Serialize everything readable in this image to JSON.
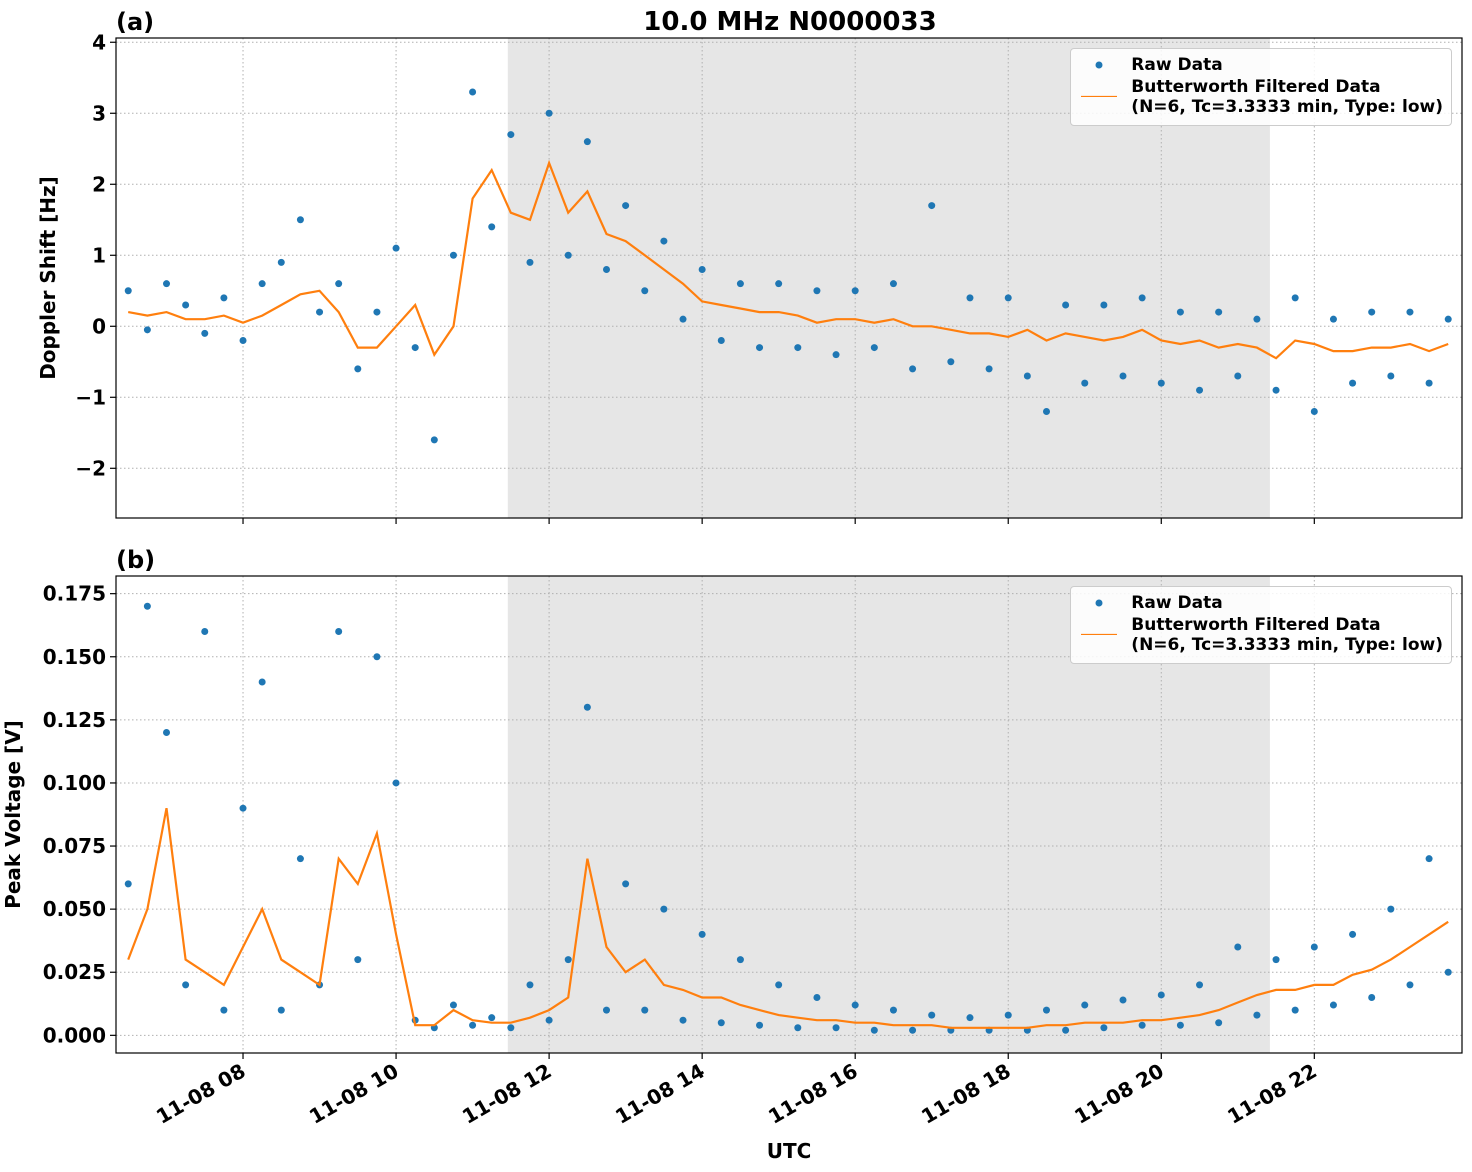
{
  "chart_data": [
    {
      "type": "line",
      "label": "(a)",
      "title": "10.0 MHz N0000033",
      "ylabel": "Doppler Shift [Hz]",
      "x": [
        6.5,
        6.75,
        7,
        7.25,
        7.5,
        7.75,
        8,
        8.25,
        8.5,
        8.75,
        9,
        9.25,
        9.5,
        9.75,
        10,
        10.25,
        10.5,
        10.75,
        11,
        11.25,
        11.5,
        11.75,
        12,
        12.25,
        12.5,
        12.75,
        13,
        13.25,
        13.5,
        13.75,
        14,
        14.25,
        14.5,
        14.75,
        15,
        15.25,
        15.5,
        15.75,
        16,
        16.25,
        16.5,
        16.75,
        17,
        17.25,
        17.5,
        17.75,
        18,
        18.25,
        18.5,
        18.75,
        19,
        19.25,
        19.5,
        19.75,
        20,
        20.25,
        20.5,
        20.75,
        21,
        21.25,
        21.5,
        21.75,
        22,
        22.25,
        22.5,
        22.75,
        23,
        23.25,
        23.5,
        23.75
      ],
      "series": [
        {
          "name": "Raw Data",
          "type": "scatter",
          "color": "#1f77b4",
          "values": [
            0.5,
            -0.05,
            0.6,
            0.3,
            -0.1,
            0.4,
            -0.2,
            0.6,
            0.9,
            1.5,
            0.2,
            0.6,
            -0.6,
            0.2,
            1.1,
            -0.3,
            -1.6,
            1.0,
            3.3,
            1.4,
            2.7,
            0.9,
            3.0,
            1.0,
            2.6,
            0.8,
            1.7,
            0.5,
            1.2,
            0.1,
            0.8,
            -0.2,
            0.6,
            -0.3,
            0.6,
            -0.3,
            0.5,
            -0.4,
            0.5,
            -0.3,
            0.6,
            -0.6,
            1.7,
            -0.5,
            0.4,
            -0.6,
            0.4,
            -0.7,
            -1.2,
            0.3,
            -0.8,
            0.3,
            -0.7,
            0.4,
            -0.8,
            0.2,
            -0.9,
            0.2,
            -0.7,
            0.1,
            -0.9,
            0.4,
            -1.2,
            0.1,
            -0.8,
            0.2,
            -0.7,
            0.2,
            -0.8,
            0.1
          ]
        },
        {
          "name": "Butterworth Filtered Data\n(N=6, Tc=3.3333 min, Type: low)",
          "type": "line",
          "color": "#ff7f0e",
          "values": [
            0.2,
            0.15,
            0.2,
            0.1,
            0.1,
            0.15,
            0.05,
            0.15,
            0.3,
            0.45,
            0.5,
            0.2,
            -0.3,
            -0.3,
            0.0,
            0.3,
            -0.4,
            0.0,
            1.8,
            2.2,
            1.6,
            1.5,
            2.3,
            1.6,
            1.9,
            1.3,
            1.2,
            1.0,
            0.8,
            0.6,
            0.35,
            0.3,
            0.25,
            0.2,
            0.2,
            0.15,
            0.05,
            0.1,
            0.1,
            0.05,
            0.1,
            0.0,
            0.0,
            -0.05,
            -0.1,
            -0.1,
            -0.15,
            -0.05,
            -0.2,
            -0.1,
            -0.15,
            -0.2,
            -0.15,
            -0.05,
            -0.2,
            -0.25,
            -0.2,
            -0.3,
            -0.25,
            -0.3,
            -0.45,
            -0.2,
            -0.25,
            -0.35,
            -0.35,
            -0.3,
            -0.3,
            -0.25,
            -0.35,
            -0.25
          ]
        }
      ],
      "span": [
        11.46,
        21.42
      ],
      "span_color": "#e6e6e6",
      "xlim": [
        6.34,
        23.93
      ],
      "xticks": [
        8,
        10,
        12,
        14,
        16,
        18,
        20,
        22
      ],
      "ylim": [
        -2.7,
        4.06
      ],
      "yticks": [
        {
          "value": -2,
          "label": "−2"
        },
        {
          "value": -1,
          "label": "−1"
        },
        0,
        1,
        2,
        3,
        4
      ],
      "grid": true,
      "legend": "upper right"
    },
    {
      "type": "line",
      "label": "(b)",
      "ylabel": "Peak Voltage [V]",
      "xlabel": "UTC",
      "x": [
        6.5,
        6.75,
        7,
        7.25,
        7.5,
        7.75,
        8,
        8.25,
        8.5,
        8.75,
        9,
        9.25,
        9.5,
        9.75,
        10,
        10.25,
        10.5,
        10.75,
        11,
        11.25,
        11.5,
        11.75,
        12,
        12.25,
        12.5,
        12.75,
        13,
        13.25,
        13.5,
        13.75,
        14,
        14.25,
        14.5,
        14.75,
        15,
        15.25,
        15.5,
        15.75,
        16,
        16.25,
        16.5,
        16.75,
        17,
        17.25,
        17.5,
        17.75,
        18,
        18.25,
        18.5,
        18.75,
        19,
        19.25,
        19.5,
        19.75,
        20,
        20.25,
        20.5,
        20.75,
        21,
        21.25,
        21.5,
        21.75,
        22,
        22.25,
        22.5,
        22.75,
        23,
        23.25,
        23.5,
        23.75
      ],
      "series": [
        {
          "name": "Raw Data",
          "type": "scatter",
          "color": "#1f77b4",
          "values": [
            0.06,
            0.17,
            0.12,
            0.02,
            0.16,
            0.01,
            0.09,
            0.14,
            0.01,
            0.07,
            0.02,
            0.16,
            0.03,
            0.15,
            0.1,
            0.006,
            0.003,
            0.012,
            0.004,
            0.007,
            0.003,
            0.02,
            0.006,
            0.03,
            0.13,
            0.01,
            0.06,
            0.01,
            0.05,
            0.006,
            0.04,
            0.005,
            0.03,
            0.004,
            0.02,
            0.003,
            0.015,
            0.003,
            0.012,
            0.002,
            0.01,
            0.002,
            0.008,
            0.002,
            0.007,
            0.002,
            0.008,
            0.002,
            0.01,
            0.002,
            0.012,
            0.003,
            0.014,
            0.004,
            0.016,
            0.004,
            0.02,
            0.005,
            0.035,
            0.008,
            0.03,
            0.01,
            0.035,
            0.012,
            0.04,
            0.015,
            0.05,
            0.02,
            0.07,
            0.025
          ]
        },
        {
          "name": "Butterworth Filtered Data\n(N=6, Tc=3.3333 min, Type: low)",
          "type": "line",
          "color": "#ff7f0e",
          "values": [
            0.03,
            0.05,
            0.09,
            0.03,
            0.025,
            0.02,
            0.035,
            0.05,
            0.03,
            0.025,
            0.02,
            0.07,
            0.06,
            0.08,
            0.04,
            0.004,
            0.004,
            0.01,
            0.006,
            0.005,
            0.005,
            0.007,
            0.01,
            0.015,
            0.07,
            0.035,
            0.025,
            0.03,
            0.02,
            0.018,
            0.015,
            0.015,
            0.012,
            0.01,
            0.008,
            0.007,
            0.006,
            0.006,
            0.005,
            0.005,
            0.004,
            0.004,
            0.004,
            0.003,
            0.003,
            0.003,
            0.003,
            0.003,
            0.004,
            0.004,
            0.005,
            0.005,
            0.005,
            0.006,
            0.006,
            0.007,
            0.008,
            0.01,
            0.013,
            0.016,
            0.018,
            0.018,
            0.02,
            0.02,
            0.024,
            0.026,
            0.03,
            0.035,
            0.04,
            0.045
          ]
        }
      ],
      "span": [
        11.46,
        21.42
      ],
      "span_color": "#e6e6e6",
      "xlim": [
        6.34,
        23.93
      ],
      "xticks": [
        {
          "value": 8,
          "label": "11-08 08"
        },
        {
          "value": 10,
          "label": "11-08 10"
        },
        {
          "value": 12,
          "label": "11-08 12"
        },
        {
          "value": 14,
          "label": "11-08 14"
        },
        {
          "value": 16,
          "label": "11-08 16"
        },
        {
          "value": 18,
          "label": "11-08 18"
        },
        {
          "value": 20,
          "label": "11-08 20"
        },
        {
          "value": 22,
          "label": "11-08 22"
        }
      ],
      "ylim": [
        -0.007,
        0.182
      ],
      "yticks": [
        {
          "value": 0,
          "label": "0.000"
        },
        0.025,
        {
          "value": 0.05,
          "label": "0.050"
        },
        0.075,
        {
          "value": 0.1,
          "label": "0.100"
        },
        0.125,
        {
          "value": 0.15,
          "label": "0.150"
        },
        0.175
      ],
      "grid": true,
      "legend": "upper right"
    }
  ]
}
